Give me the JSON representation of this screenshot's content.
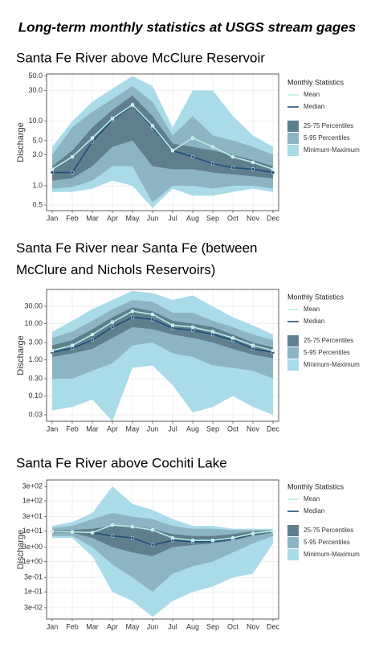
{
  "title": "Long-term monthly statistics at USGS stream gages",
  "chart_data": [
    {
      "type": "line",
      "title": "Santa Fe River above McClure Reservoir",
      "y_label": "Discharge",
      "log": true,
      "grid": true,
      "legend_title": "Monthly Statistics",
      "categories": [
        "Jan",
        "Feb",
        "Mar",
        "Apr",
        "May",
        "Jun",
        "Jul",
        "Aug",
        "Sep",
        "Oct",
        "Nov",
        "Dec"
      ],
      "ylim": [
        0.41,
        54
      ],
      "yticks": [
        0.5,
        {
          "value": 1,
          "label": "1.0"
        },
        {
          "value": 3,
          "label": "3.0"
        },
        {
          "value": 5,
          "label": "5.0"
        },
        {
          "value": 10,
          "label": "10.0"
        },
        {
          "value": 30,
          "label": "30.0"
        },
        {
          "value": 50,
          "label": "50.0"
        }
      ],
      "series": [
        {
          "name": "Mean",
          "color": "#b8ece6",
          "values": [
            1.8,
            2.8,
            5.5,
            11,
            18,
            8.5,
            3.5,
            5.5,
            4,
            2.8,
            2.3,
            1.8
          ]
        },
        {
          "name": "Median",
          "color": "#1f4e79",
          "values": [
            1.6,
            1.6,
            4.8,
            10.5,
            17.5,
            8,
            3.5,
            2.8,
            2.2,
            1.9,
            1.8,
            1.6
          ]
        },
        {
          "name": "25-75 Percentiles",
          "color": "#5f7f8d",
          "low": [
            1.2,
            1.3,
            2,
            4,
            5,
            2,
            1.8,
            1.8,
            1.6,
            1.5,
            1.4,
            1.3
          ],
          "high": [
            2,
            3.5,
            8,
            15,
            25,
            12,
            4.5,
            4,
            3.5,
            3,
            2.5,
            2
          ]
        },
        {
          "name": "5-95 Percentiles",
          "color": "#8db4c3",
          "low": [
            0.9,
            0.95,
            1.2,
            2,
            2,
            0.55,
            1,
            1,
            0.9,
            1,
            1,
            0.9
          ],
          "high": [
            3,
            8,
            14,
            22,
            35,
            20,
            6,
            12,
            6,
            5,
            4,
            3
          ]
        },
        {
          "name": "Minimum-Maximum",
          "color": "#a9dbe8",
          "low": [
            0.8,
            0.8,
            0.9,
            1.2,
            1,
            0.45,
            0.9,
            0.7,
            0.7,
            0.8,
            0.9,
            0.8
          ],
          "high": [
            4,
            10,
            20,
            32,
            50,
            35,
            8,
            30,
            30,
            12,
            6,
            4
          ]
        }
      ]
    },
    {
      "type": "line",
      "title": "Santa Fe River near Santa Fe (between McClure and Nichols Reservoirs)",
      "y_label": "Discharge",
      "log": true,
      "grid": true,
      "legend_title": "Monthly Statistics",
      "categories": [
        "Jan",
        "Feb",
        "Mar",
        "Apr",
        "May",
        "Jun",
        "Jul",
        "Aug",
        "Sep",
        "Oct",
        "Nov",
        "Dec"
      ],
      "ylim": [
        0.02,
        88
      ],
      "yticks": [
        0.03,
        {
          "value": 0.1,
          "label": "0.10"
        },
        {
          "value": 0.3,
          "label": "0.30"
        },
        {
          "value": 1,
          "label": "1.00"
        },
        {
          "value": 3,
          "label": "3.00"
        },
        {
          "value": 10,
          "label": "10.00"
        },
        {
          "value": 30,
          "label": "30.00"
        }
      ],
      "series": [
        {
          "name": "Mean",
          "color": "#b8ece6",
          "values": [
            1.8,
            2.5,
            5,
            11,
            22,
            18,
            9,
            8,
            6,
            4,
            2.5,
            1.8
          ]
        },
        {
          "name": "Median",
          "color": "#1f4e79",
          "values": [
            1.6,
            2.1,
            3.5,
            8,
            15,
            13,
            7.5,
            6.5,
            5,
            3.5,
            2,
            1.6
          ]
        },
        {
          "name": "25-75 Percentiles",
          "color": "#5f7f8d",
          "low": [
            1.2,
            1.5,
            2,
            4,
            8,
            7,
            5,
            4,
            3,
            2,
            1.4,
            1.1
          ],
          "high": [
            2.5,
            3.5,
            7,
            15,
            28,
            22,
            12,
            10,
            8,
            5,
            3,
            2.2
          ]
        },
        {
          "name": "5-95 Percentiles",
          "color": "#8db4c3",
          "low": [
            0.3,
            0.3,
            0.5,
            0.8,
            2.5,
            3,
            1.5,
            1.2,
            0.7,
            0.6,
            0.5,
            0.3
          ],
          "high": [
            4,
            6,
            12,
            25,
            45,
            40,
            20,
            20,
            12,
            8,
            5,
            3.5
          ]
        },
        {
          "name": "Minimum-Maximum",
          "color": "#a9dbe8",
          "low": [
            0.04,
            0.05,
            0.08,
            0.02,
            0.6,
            0.7,
            0.2,
            0.035,
            0.05,
            0.1,
            0.05,
            0.03
          ],
          "high": [
            6,
            12,
            25,
            45,
            80,
            70,
            45,
            60,
            30,
            15,
            9,
            5
          ]
        }
      ]
    },
    {
      "type": "line",
      "title": "Santa Fe River above Cochiti Lake",
      "y_label": "Discharge",
      "log": true,
      "grid": true,
      "legend_title": "Monthly Statistics",
      "categories": [
        "Jan",
        "Feb",
        "Mar",
        "Apr",
        "May",
        "Jun",
        "Jul",
        "Aug",
        "Sep",
        "Oct",
        "Nov",
        "Dec"
      ],
      "ylim": [
        0.0127,
        490
      ],
      "yticks": [
        {
          "value": 0.03,
          "label": "3e-02"
        },
        {
          "value": 0.1,
          "label": "1e-01"
        },
        {
          "value": 0.3,
          "label": "3e-01"
        },
        {
          "value": 1,
          "label": "1e+00"
        },
        {
          "value": 3,
          "label": "3e+00"
        },
        {
          "value": 10,
          "label": "1e+01"
        },
        {
          "value": 30,
          "label": "3e+01"
        },
        {
          "value": 100,
          "label": "1e+02"
        },
        {
          "value": 300,
          "label": "3e+02"
        }
      ],
      "series": [
        {
          "name": "Mean",
          "color": "#b8ece6",
          "values": [
            10,
            9.5,
            9,
            16,
            14,
            11,
            6,
            5,
            5,
            6,
            8.5,
            10
          ]
        },
        {
          "name": "Median",
          "color": "#1f4e79",
          "values": [
            10,
            9.5,
            9,
            7,
            6,
            3.5,
            5,
            4.5,
            4.5,
            5.5,
            8,
            10
          ]
        },
        {
          "name": "25-75 Percentiles",
          "color": "#5f7f8d",
          "low": [
            9,
            9,
            6,
            3,
            2,
            1.5,
            3,
            3.5,
            4,
            5,
            7,
            9
          ],
          "high": [
            11,
            11,
            12,
            15,
            15,
            12,
            8,
            7,
            7,
            8,
            10,
            10
          ]
        },
        {
          "name": "5-95 Percentiles",
          "color": "#8db4c3",
          "low": [
            7,
            7,
            3,
            0.8,
            0.3,
            0.1,
            0.4,
            0.7,
            1,
            2,
            4,
            7
          ],
          "high": [
            13,
            15,
            25,
            40,
            30,
            25,
            15,
            12,
            12,
            11,
            11,
            11
          ]
        },
        {
          "name": "Minimum-Maximum",
          "color": "#a9dbe8",
          "low": [
            6,
            6,
            1.5,
            0.1,
            0.05,
            0.015,
            0.05,
            0.1,
            0.15,
            0.3,
            0.4,
            4
          ],
          "high": [
            15,
            20,
            40,
            300,
            80,
            50,
            25,
            15,
            15,
            12,
            12,
            12
          ]
        }
      ]
    }
  ]
}
